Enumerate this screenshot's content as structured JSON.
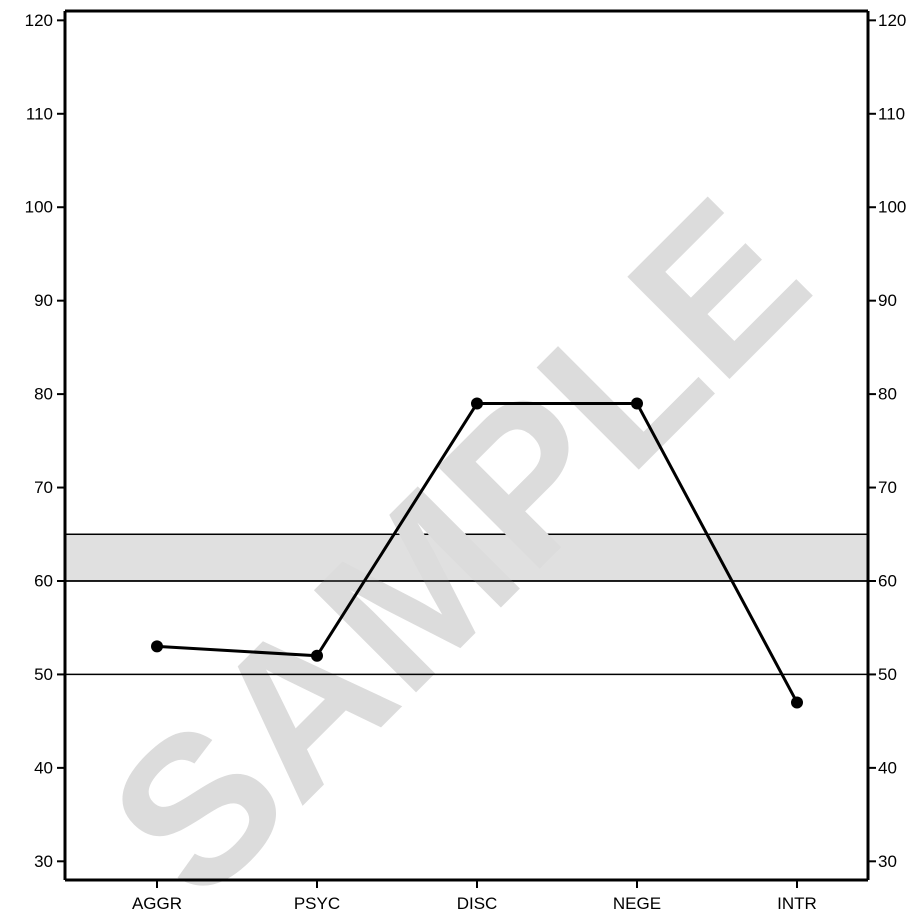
{
  "chart_data": {
    "type": "line",
    "categories": [
      "AGGR",
      "PSYC",
      "DISC",
      "NEGE",
      "INTR"
    ],
    "series": [
      {
        "values": [
          53,
          52,
          79,
          79,
          47
        ]
      }
    ],
    "ylim": [
      28,
      121
    ],
    "yticks": [
      30,
      40,
      50,
      60,
      70,
      80,
      90,
      100,
      110,
      120
    ],
    "y_axis_both_sides": true,
    "shaded_band": [
      60,
      65
    ],
    "reference_lines": [
      50,
      60
    ],
    "grid": false,
    "line_color": "#000000",
    "band_color": "#e0e0e0",
    "watermark": "SAMPLE",
    "watermark_color": "#dcdcdc"
  }
}
